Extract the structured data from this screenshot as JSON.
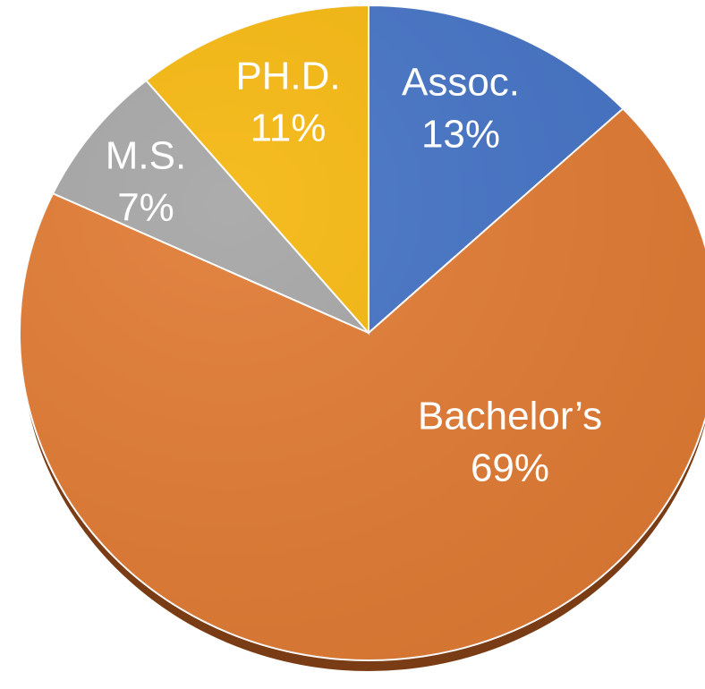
{
  "chart_data": {
    "type": "pie",
    "categories": [
      "Assoc.",
      "Bachelor’s",
      "M.S.",
      "PH.D."
    ],
    "values": [
      13,
      69,
      7,
      11
    ],
    "value_labels": [
      "13%",
      "69%",
      "7%",
      "11%"
    ],
    "colors": [
      "#4472c4",
      "#e07a33",
      "#a5a5a5",
      "#f5b70f"
    ]
  }
}
